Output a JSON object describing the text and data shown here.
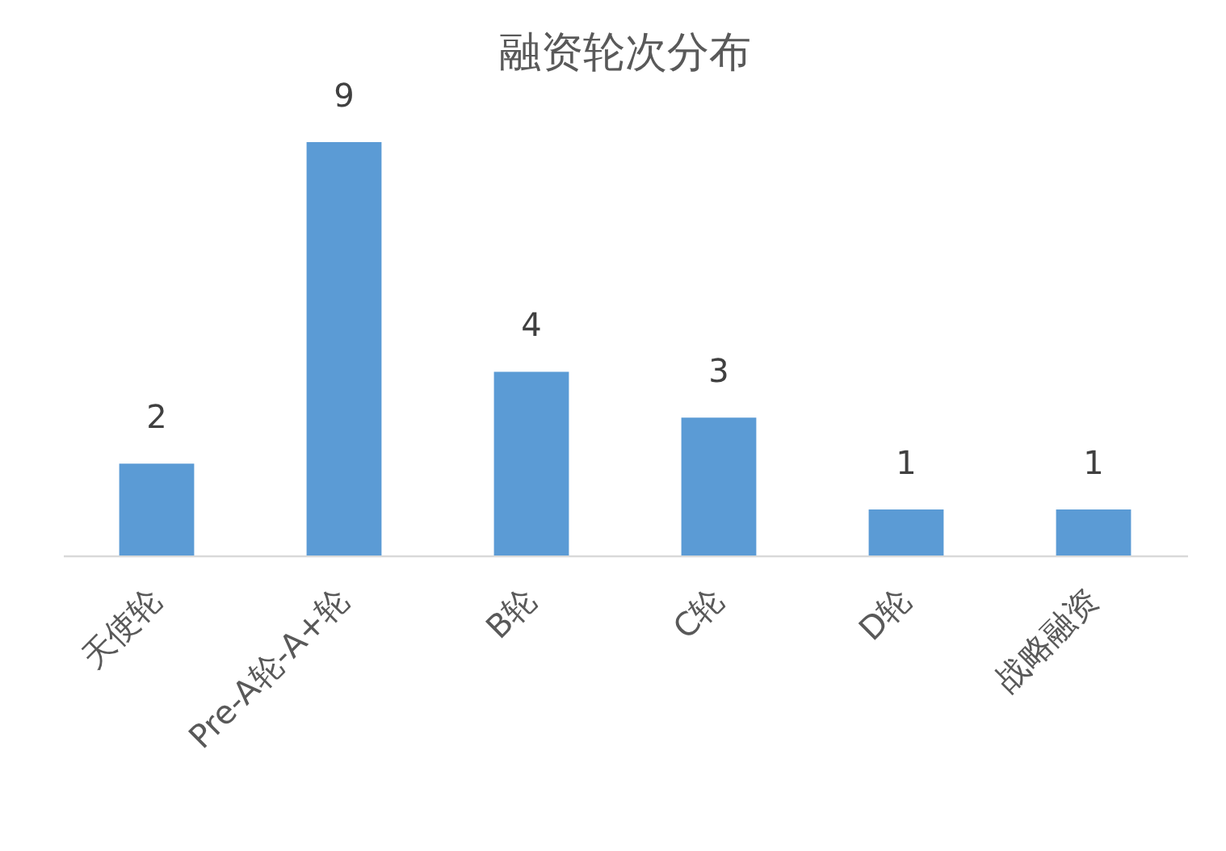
{
  "chart_data": {
    "type": "bar",
    "title": "融资轮次分布",
    "categories": [
      "天使轮",
      "Pre-A轮-A+轮",
      "B轮",
      "C轮",
      "D轮",
      "战略融资"
    ],
    "values": [
      2,
      9,
      4,
      3,
      1,
      1
    ],
    "color": "#5b9bd5",
    "data_labels": true,
    "tick_labels": "x",
    "grid": false
  }
}
